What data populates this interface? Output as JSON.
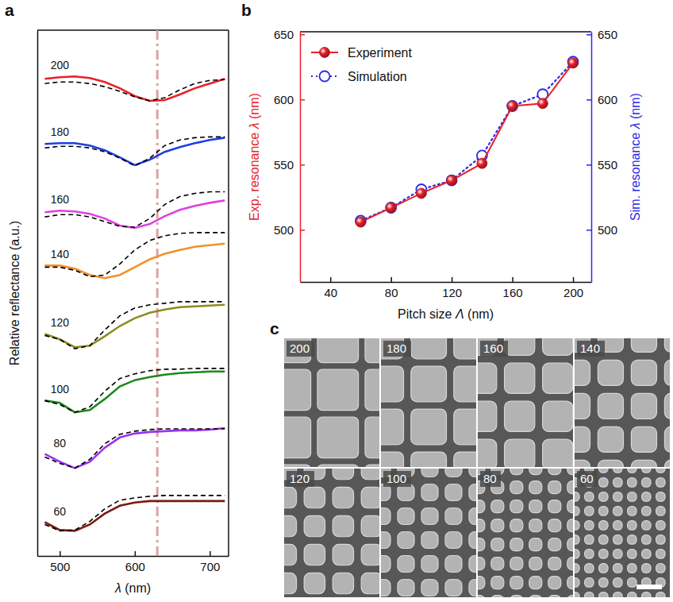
{
  "chart_data": [
    {
      "panel": "a",
      "type": "line",
      "xlabel": "λ (nm)",
      "ylabel": "Relative reflectance (a.u.)",
      "x": [
        480,
        500,
        520,
        540,
        560,
        580,
        600,
        620,
        640,
        660,
        680,
        700,
        720
      ],
      "xlim": [
        470,
        725
      ],
      "xticks": [
        500,
        600,
        700
      ],
      "ylim": [
        0,
        670
      ],
      "tick_labels": "x",
      "reference_line": {
        "x": 630,
        "color": "#d9a3a3",
        "line_style": "dashdot"
      },
      "series": [
        {
          "name": "200",
          "color": "#e8202a",
          "line_style": "solid",
          "values": [
            608,
            610,
            611,
            609,
            604,
            596,
            586,
            580,
            581,
            588,
            596,
            602,
            608
          ]
        },
        {
          "color": "#000000",
          "line_style": "dashed",
          "values": [
            602,
            604,
            604,
            602,
            598,
            592,
            585,
            580,
            584,
            594,
            602,
            606,
            607
          ]
        },
        {
          "name": "180",
          "color": "#1f3fe0",
          "line_style": "solid",
          "values": [
            525,
            526,
            526,
            523,
            517,
            508,
            498,
            505,
            515,
            521,
            526,
            530,
            533
          ]
        },
        {
          "color": "#000000",
          "line_style": "dashed",
          "values": [
            520,
            522,
            522,
            520,
            515,
            507,
            497,
            507,
            523,
            530,
            533,
            534,
            534
          ]
        },
        {
          "name": "160",
          "color": "#e040e0",
          "line_style": "solid",
          "values": [
            438,
            440,
            439,
            436,
            430,
            421,
            418,
            423,
            433,
            441,
            446,
            450,
            453
          ]
        },
        {
          "color": "#000000",
          "line_style": "dashed",
          "values": [
            432,
            435,
            435,
            432,
            426,
            420,
            419,
            430,
            448,
            458,
            462,
            464,
            464
          ]
        },
        {
          "name": "140",
          "color": "#f5902a",
          "line_style": "solid",
          "values": [
            370,
            370,
            366,
            358,
            354,
            358,
            368,
            378,
            385,
            390,
            394,
            396,
            398
          ]
        },
        {
          "color": "#000000",
          "line_style": "dashed",
          "values": [
            368,
            368,
            364,
            356,
            358,
            372,
            390,
            402,
            408,
            411,
            412,
            412,
            412
          ]
        },
        {
          "name": "120",
          "color": "#8c8c20",
          "line_style": "solid",
          "values": [
            283,
            276,
            266,
            268,
            280,
            293,
            303,
            310,
            314,
            317,
            318,
            319,
            320
          ]
        },
        {
          "color": "#000000",
          "line_style": "dashed",
          "values": [
            281,
            276,
            264,
            268,
            288,
            306,
            316,
            320,
            322,
            324,
            324,
            324,
            324
          ]
        },
        {
          "name": "100",
          "color": "#1a8a1a",
          "line_style": "solid",
          "values": [
            198,
            195,
            183,
            186,
            200,
            216,
            224,
            228,
            231,
            233,
            234,
            235,
            235
          ]
        },
        {
          "color": "#000000",
          "line_style": "dashed",
          "values": [
            198,
            193,
            183,
            190,
            210,
            226,
            232,
            236,
            238,
            238,
            239,
            239,
            239
          ]
        },
        {
          "name": "80",
          "color": "#9933ee",
          "line_style": "solid",
          "values": [
            130,
            120,
            112,
            120,
            138,
            151,
            156,
            158,
            159,
            160,
            160,
            161,
            163
          ]
        },
        {
          "color": "#000000",
          "line_style": "dashed",
          "values": [
            126,
            118,
            112,
            123,
            143,
            155,
            159,
            161,
            162,
            162,
            162,
            162,
            162
          ]
        },
        {
          "name": "60",
          "color": "#7a1a10",
          "line_style": "solid",
          "values": [
            43,
            33,
            32,
            40,
            54,
            64,
            68,
            70,
            70,
            70,
            70,
            70,
            70
          ]
        },
        {
          "color": "#000000",
          "line_style": "dashed",
          "values": [
            40,
            32,
            33,
            44,
            60,
            71,
            74,
            76,
            77,
            77,
            77,
            77,
            77
          ]
        }
      ]
    },
    {
      "panel": "b",
      "type": "line",
      "xlabel": "Pitch size Λ (nm)",
      "ylabel": "Exp. resonance λ (nm)",
      "y2label": "Sim. resonance λ (nm)",
      "x": [
        60,
        80,
        100,
        120,
        140,
        160,
        180,
        200
      ],
      "xlim": [
        20,
        212
      ],
      "xticks": [
        40,
        80,
        120,
        160,
        200
      ],
      "ylim": [
        460,
        652
      ],
      "yticks": [
        500,
        550,
        600,
        650
      ],
      "y2lim": [
        460,
        652
      ],
      "y2ticks": [
        500,
        550,
        600,
        650
      ],
      "legend": "upper left",
      "series": [
        {
          "name": "Simulation",
          "color": "#2a2ae6",
          "marker": "open-circle",
          "line_style": "dotted",
          "axis": "y2",
          "values": [
            507,
            517,
            531,
            538,
            557,
            595,
            604,
            629
          ]
        },
        {
          "name": "Experiment",
          "color": "#e8202a",
          "marker": "sphere",
          "line_style": "solid",
          "values": [
            506,
            517,
            528,
            538,
            551,
            595,
            597,
            628
          ]
        }
      ]
    }
  ],
  "images": {
    "panel": "c",
    "type": "micrograph_grid",
    "labels": [
      "200",
      "180",
      "160",
      "140",
      "120",
      "100",
      "80",
      "60"
    ]
  }
}
